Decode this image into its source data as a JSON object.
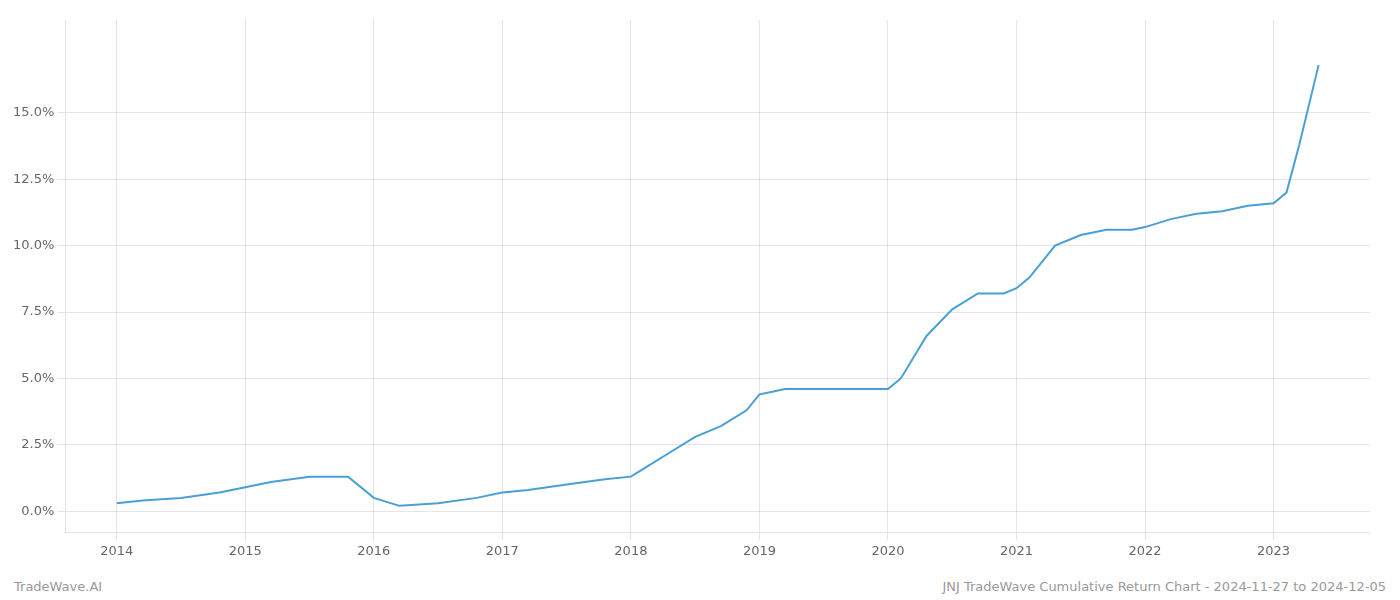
{
  "chart_data": {
    "type": "line",
    "x": [
      2014.0,
      2014.2,
      2014.5,
      2014.8,
      2015.0,
      2015.2,
      2015.5,
      2015.8,
      2016.0,
      2016.2,
      2016.5,
      2016.8,
      2017.0,
      2017.2,
      2017.5,
      2017.8,
      2018.0,
      2018.1,
      2018.3,
      2018.5,
      2018.7,
      2018.9,
      2019.0,
      2019.1,
      2019.2,
      2019.3,
      2019.5,
      2019.7,
      2019.9,
      2020.0,
      2020.1,
      2020.3,
      2020.5,
      2020.7,
      2020.9,
      2021.0,
      2021.1,
      2021.3,
      2021.5,
      2021.7,
      2021.9,
      2022.0,
      2022.2,
      2022.4,
      2022.6,
      2022.8,
      2023.0,
      2023.1,
      2023.2,
      2023.35
    ],
    "series": [
      {
        "color": "#4a9fd4",
        "values": [
          0.003,
          0.004,
          0.005,
          0.007,
          0.009,
          0.011,
          0.013,
          0.013,
          0.005,
          0.002,
          0.003,
          0.005,
          0.007,
          0.008,
          0.01,
          0.012,
          0.013,
          0.016,
          0.022,
          0.028,
          0.032,
          0.038,
          0.044,
          0.045,
          0.046,
          0.046,
          0.046,
          0.046,
          0.046,
          0.046,
          0.05,
          0.066,
          0.076,
          0.082,
          0.082,
          0.084,
          0.088,
          0.1,
          0.104,
          0.106,
          0.106,
          0.107,
          0.11,
          0.112,
          0.113,
          0.115,
          0.116,
          0.12,
          0.138,
          0.168
        ]
      }
    ],
    "xlim": [
      2013.6,
      2023.75
    ],
    "ylim": [
      -0.008,
      0.185
    ],
    "xticks": [
      2014,
      2015,
      2016,
      2017,
      2018,
      2019,
      2020,
      2021,
      2022,
      2023
    ],
    "yticks": [
      {
        "value": 0.0,
        "label": "0.0%"
      },
      {
        "value": 0.025,
        "label": "2.5%"
      },
      {
        "value": 0.05,
        "label": "5.0%"
      },
      {
        "value": 0.075,
        "label": "7.5%"
      },
      {
        "value": 0.1,
        "label": "10.0%"
      },
      {
        "value": 0.125,
        "label": "12.5%"
      },
      {
        "value": 0.15,
        "label": "15.0%"
      }
    ],
    "grid": true,
    "annotations": [
      "TradeWave.AI",
      "JNJ TradeWave Cumulative Return Chart - 2024-11-27 to 2024-12-05"
    ]
  }
}
